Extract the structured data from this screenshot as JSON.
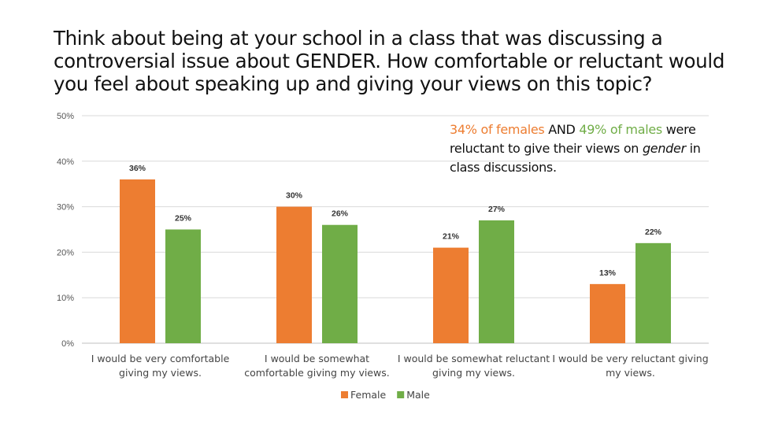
{
  "title": "Think about being at your school in a class that was discussing a controversial issue about GENDER. How comfortable or reluctant would you feel about speaking up and giving your views on this topic?",
  "annotation": {
    "part1": "34% of females",
    "part2": " AND ",
    "part3": "49% of males",
    "part4": " were reluctant to give their views on ",
    "part5": "gender",
    "part6": " in class discussions."
  },
  "colors": {
    "female": "#ED7D31",
    "male": "#70AD47",
    "grid": "#D9D9D9"
  },
  "chart_data": {
    "type": "bar",
    "categories": [
      [
        "I would be very comfortable",
        "giving my views."
      ],
      [
        "I would be somewhat",
        "comfortable giving my views."
      ],
      [
        "I would be somewhat reluctant",
        "giving my views."
      ],
      [
        "I would be very reluctant giving",
        "my views."
      ]
    ],
    "series": [
      {
        "name": "Female",
        "values": [
          36,
          30,
          21,
          13
        ],
        "labels": [
          "36%",
          "30%",
          "21%",
          "13%"
        ],
        "color": "#ED7D31"
      },
      {
        "name": "Male",
        "values": [
          25,
          26,
          27,
          22
        ],
        "labels": [
          "25%",
          "26%",
          "27%",
          "22%"
        ],
        "color": "#70AD47"
      }
    ],
    "ylim": [
      0,
      50
    ],
    "yticks": [
      "0%",
      "10%",
      "20%",
      "30%",
      "40%",
      "50%"
    ],
    "grid": true,
    "legend": "bottom"
  }
}
